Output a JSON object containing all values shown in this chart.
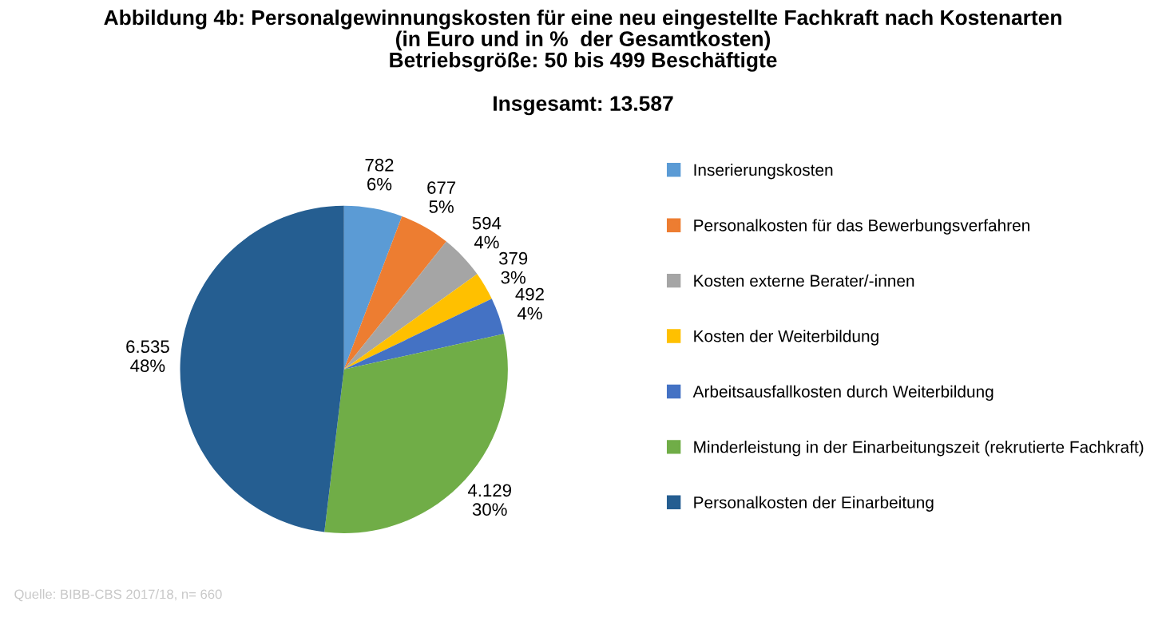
{
  "chart_data": {
    "type": "pie",
    "title": "Abbildung 4b: Personalgewinnungskosten für eine neu eingestellte Fachkraft nach Kostenarten\n(in Euro und in %  der Gesamtkosten)\nBetriebsgröße: 50 bis 499 Beschäftigte",
    "subtitle": "Insgesamt: 13.587",
    "categories": [
      "Inserierungskosten",
      "Personalkosten für das Bewerbungsverfahren",
      "Kosten externe Berater/-innen",
      "Kosten der Weiterbildung",
      "Arbeitsausfallkosten durch Weiterbildung",
      "Minderleistung in der Einarbeitungszeit (rekrutierte Fachkraft)",
      "Personalkosten der Einarbeitung"
    ],
    "values": [
      782,
      677,
      594,
      379,
      492,
      4129,
      6535
    ],
    "value_labels": [
      "782\n6%",
      "677\n5%",
      "594\n4%",
      "379\n3%",
      "492\n4%",
      "4.129\n30%",
      "6.535\n48%"
    ],
    "colors": [
      "#5b9bd5",
      "#ed7d31",
      "#a5a5a5",
      "#ffc000",
      "#4472c4",
      "#70ad47",
      "#255e91"
    ],
    "legend": "right",
    "annotations": [
      "Quelle: BIBB-CBS 2017/18, n= 660"
    ]
  }
}
